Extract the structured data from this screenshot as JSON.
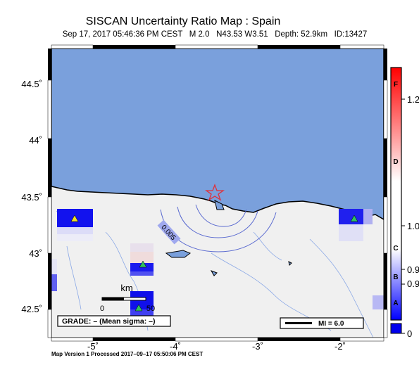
{
  "title": "SISCAN Uncertainty Ratio Map : Spain",
  "subtitle": {
    "datetime": "Sep 17, 2017 05:46:36 PM CEST",
    "magnitude": "M 2.0",
    "location": "N43.53 W3.51",
    "depth": "Depth: 52.9km",
    "id": "ID:13427"
  },
  "map": {
    "lat_ticks": [
      "44.5˚",
      "44˚",
      "43.5˚",
      "43˚",
      "42.5˚"
    ],
    "lon_ticks": [
      "-5˚",
      "-4˚",
      "-3˚",
      "-2˚"
    ],
    "contour_label": "0.005",
    "scale_bar": {
      "unit": "km",
      "start": "0",
      "end": "50"
    },
    "grade_box": "GRADE: – (Mean sigma: –)",
    "mi_legend": "MI = 6.0",
    "colors": {
      "sea": "#7aa0dc",
      "land": "#f0f0f0",
      "epicenter": "#e0303a",
      "station_fill": "#1a1aee",
      "contour": "#5a6ad0"
    },
    "icons": [
      "epicenter-star-icon",
      "station-triangle-icon"
    ]
  },
  "colorbar": {
    "grades": [
      "F",
      "D",
      "C",
      "B",
      "A"
    ],
    "values": [
      "1.2",
      "1.0",
      "0.9",
      "0.9",
      "0"
    ],
    "colors": [
      "#ff0000",
      "#ffffff",
      "#0000ff"
    ]
  },
  "footer": "Map Version 1 Processed 2017–09–17 05:50:06 PM CEST"
}
